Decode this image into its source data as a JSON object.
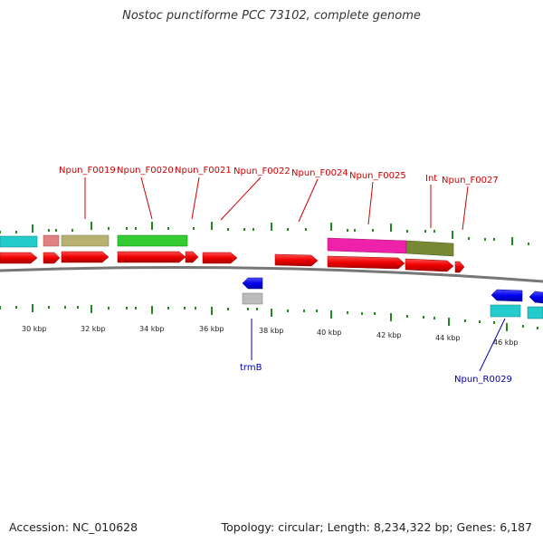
{
  "title": "Nostoc punctiforme PCC 73102, complete genome",
  "footer": {
    "accession": "Accession: NC_010628",
    "stats": "Topology: circular; Length: 8,234,322 bp; Genes: 6,187"
  },
  "colors": {
    "cds": "#ee0000",
    "minus_strand": "#0000ee",
    "feature_cyan": "#22cccc",
    "feature_pink": "#e08080",
    "feature_khaki": "#b8b070",
    "feature_green": "#33cc33",
    "feature_magenta": "#ee22aa",
    "feature_olive": "#778833",
    "feature_grey": "#bbbbbb",
    "tick": "#228822",
    "backbone": "#777777"
  },
  "ruler_labels": [
    "30 kbp",
    "32 kbp",
    "34 kbp",
    "36 kbp",
    "38 kbp",
    "40 kbp",
    "42 kbp",
    "44 kbp",
    "46 kbp"
  ],
  "gene_labels_top": [
    "Npun_F0019",
    "Npun_F0020",
    "Npun_F0021",
    "Npun_F0022",
    "Npun_F0024",
    "Npun_F0025",
    "Int",
    "Npun_F0027"
  ],
  "gene_labels_bottom": [
    "trmB",
    "Npun_R0029"
  ]
}
